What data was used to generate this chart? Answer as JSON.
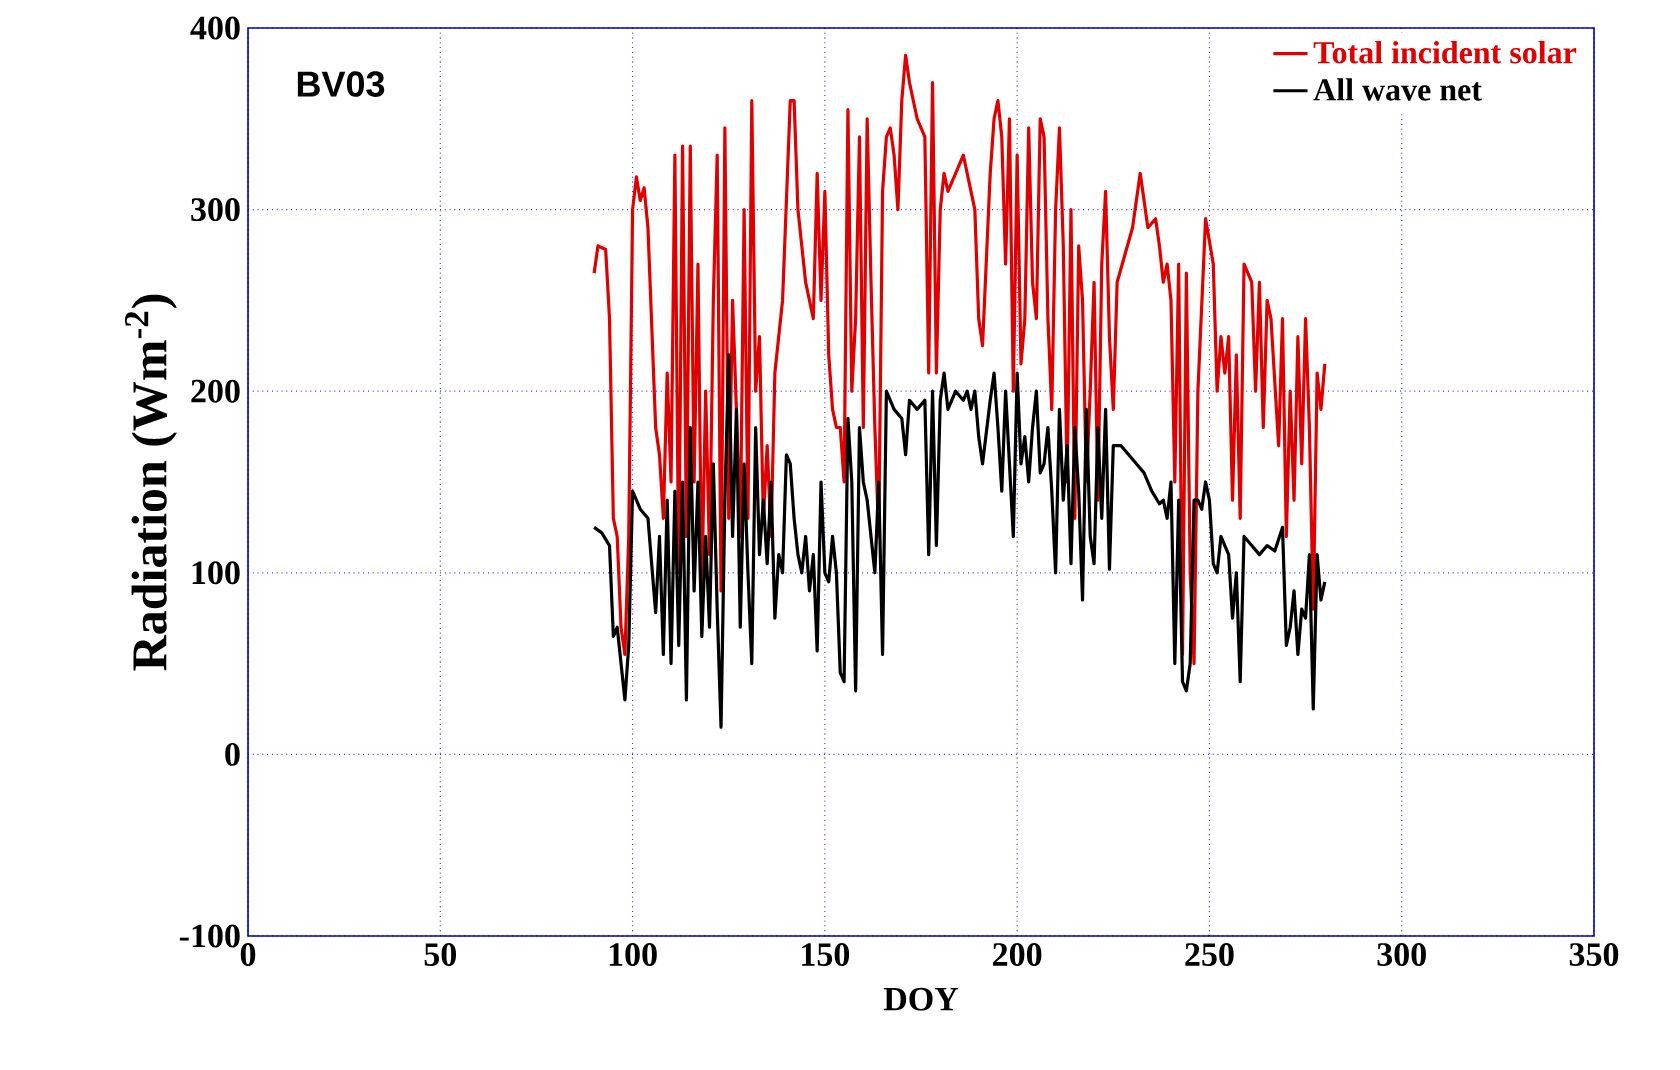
{
  "chart_data": {
    "type": "line",
    "xlabel": "DOY",
    "ylabel": "Radiation (Wm$^{-2}$)",
    "annotations": [
      "BV03"
    ],
    "xlim": [
      0,
      350
    ],
    "xticks": [
      0,
      50,
      100,
      150,
      200,
      250,
      300,
      350
    ],
    "ylim": [
      -100,
      400
    ],
    "yticks": [
      -100,
      0,
      100,
      200,
      300,
      400
    ],
    "grid": true,
    "legend": "top right",
    "series": [
      {
        "name": "Total incident solar",
        "color": "#e00000",
        "x": [
          90,
          91,
          93,
          94,
          95,
          96,
          97,
          98,
          99,
          100,
          101,
          102,
          103,
          104,
          106,
          107,
          108,
          109,
          110,
          111,
          112,
          113,
          114,
          115,
          116,
          117,
          118,
          119,
          120,
          121,
          122,
          123,
          124,
          125,
          126,
          127,
          128,
          129,
          130,
          131,
          132,
          133,
          134,
          135,
          136,
          137,
          139,
          141,
          142,
          143,
          144,
          145,
          147,
          148,
          149,
          150,
          151,
          152,
          153,
          154,
          155,
          156,
          157,
          158,
          159,
          160,
          161,
          162,
          163,
          164,
          165,
          166,
          167,
          168,
          169,
          170,
          171,
          172,
          174,
          176,
          177,
          178,
          179,
          180,
          181,
          182,
          184,
          186,
          187,
          188,
          189,
          190,
          191,
          193,
          194,
          195,
          196,
          197,
          198,
          199,
          200,
          201,
          202,
          203,
          204,
          205,
          206,
          207,
          208,
          209,
          210,
          211,
          212,
          213,
          214,
          215,
          216,
          217,
          218,
          219,
          220,
          221,
          222,
          223,
          224,
          225,
          226,
          228,
          230,
          232,
          234,
          236,
          237,
          238,
          239,
          240,
          241,
          242,
          243,
          244,
          245,
          246,
          247,
          249,
          251,
          252,
          253,
          254,
          255,
          256,
          257,
          258,
          259,
          261,
          262,
          263,
          264,
          265,
          266,
          268,
          269,
          270,
          271,
          272,
          273,
          274,
          275,
          276,
          277,
          278,
          279,
          280
        ],
        "values": [
          265,
          280,
          278,
          240,
          130,
          120,
          70,
          55,
          120,
          300,
          318,
          305,
          312,
          290,
          180,
          165,
          130,
          210,
          150,
          330,
          100,
          335,
          120,
          335,
          150,
          270,
          90,
          200,
          110,
          250,
          330,
          90,
          345,
          130,
          250,
          190,
          120,
          300,
          130,
          360,
          200,
          230,
          130,
          170,
          120,
          210,
          250,
          360,
          360,
          300,
          280,
          260,
          240,
          320,
          250,
          310,
          220,
          190,
          180,
          180,
          150,
          355,
          200,
          240,
          340,
          180,
          350,
          260,
          180,
          120,
          310,
          340,
          345,
          330,
          300,
          360,
          385,
          370,
          350,
          340,
          210,
          370,
          210,
          300,
          320,
          310,
          320,
          330,
          320,
          310,
          300,
          240,
          225,
          320,
          350,
          360,
          340,
          270,
          350,
          200,
          330,
          215,
          240,
          345,
          260,
          240,
          350,
          340,
          240,
          190,
          300,
          345,
          280,
          150,
          300,
          130,
          280,
          250,
          150,
          200,
          260,
          140,
          270,
          310,
          230,
          190,
          260,
          275,
          290,
          320,
          290,
          295,
          280,
          260,
          270,
          250,
          150,
          270,
          55,
          265,
          100,
          50,
          200,
          295,
          270,
          200,
          230,
          210,
          230,
          140,
          220,
          130,
          270,
          260,
          200,
          260,
          180,
          250,
          240,
          170,
          240,
          120,
          200,
          140,
          230,
          160,
          240,
          180,
          80,
          210,
          190,
          215
        ]
      },
      {
        "name": "All wave net",
        "color": "#000000",
        "x": [
          90,
          92,
          94,
          95,
          96,
          97,
          98,
          99,
          100,
          102,
          104,
          106,
          107,
          108,
          109,
          110,
          111,
          112,
          113,
          114,
          115,
          116,
          117,
          118,
          119,
          120,
          121,
          122,
          123,
          124,
          125,
          126,
          127,
          128,
          129,
          130,
          131,
          132,
          133,
          134,
          135,
          136,
          137,
          138,
          139,
          140,
          141,
          142,
          143,
          144,
          145,
          146,
          147,
          148,
          149,
          150,
          151,
          152,
          153,
          154,
          155,
          156,
          157,
          158,
          159,
          160,
          161,
          162,
          163,
          164,
          165,
          166,
          168,
          170,
          171,
          172,
          174,
          176,
          177,
          178,
          179,
          180,
          181,
          182,
          184,
          186,
          187,
          188,
          189,
          190,
          191,
          193,
          194,
          195,
          196,
          197,
          198,
          199,
          200,
          201,
          202,
          203,
          204,
          205,
          206,
          207,
          208,
          209,
          210,
          211,
          212,
          213,
          214,
          215,
          216,
          217,
          218,
          219,
          220,
          221,
          222,
          223,
          224,
          225,
          227,
          229,
          231,
          233,
          235,
          237,
          238,
          239,
          240,
          241,
          242,
          243,
          244,
          245,
          246,
          247,
          248,
          249,
          250,
          251,
          252,
          253,
          254,
          255,
          256,
          257,
          258,
          259,
          261,
          263,
          265,
          267,
          269,
          270,
          271,
          272,
          273,
          274,
          275,
          276,
          277,
          278,
          279,
          280
        ],
        "values": [
          125,
          122,
          115,
          65,
          70,
          50,
          30,
          60,
          145,
          135,
          130,
          78,
          120,
          55,
          140,
          50,
          145,
          60,
          150,
          30,
          180,
          90,
          150,
          65,
          120,
          70,
          160,
          80,
          15,
          140,
          220,
          120,
          190,
          70,
          160,
          100,
          50,
          180,
          110,
          140,
          105,
          150,
          75,
          110,
          100,
          165,
          160,
          130,
          110,
          100,
          120,
          90,
          110,
          57,
          150,
          100,
          95,
          120,
          100,
          45,
          40,
          185,
          150,
          35,
          180,
          150,
          140,
          120,
          100,
          150,
          55,
          200,
          190,
          185,
          165,
          195,
          190,
          195,
          110,
          200,
          115,
          195,
          210,
          190,
          200,
          195,
          200,
          190,
          200,
          175,
          160,
          195,
          210,
          180,
          145,
          200,
          160,
          120,
          210,
          160,
          175,
          150,
          180,
          200,
          155,
          160,
          180,
          145,
          100,
          190,
          140,
          170,
          105,
          180,
          145,
          85,
          190,
          120,
          105,
          180,
          130,
          190,
          102,
          170,
          170,
          165,
          160,
          155,
          145,
          138,
          140,
          130,
          150,
          50,
          140,
          40,
          35,
          50,
          140,
          140,
          135,
          150,
          140,
          105,
          100,
          120,
          115,
          110,
          75,
          100,
          40,
          120,
          115,
          110,
          115,
          112,
          125,
          60,
          70,
          90,
          55,
          80,
          75,
          110,
          25,
          110,
          85,
          95
        ]
      }
    ]
  }
}
